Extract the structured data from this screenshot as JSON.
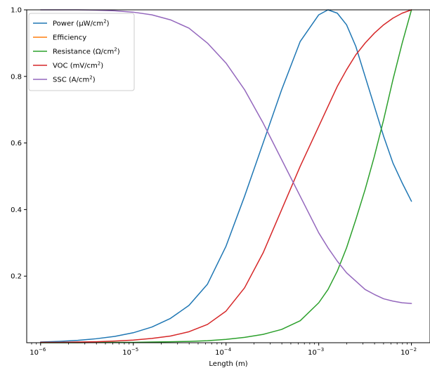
{
  "chart_data": {
    "type": "line",
    "title": "",
    "xlabel": "Length (m)",
    "ylabel": "",
    "xscale": "log",
    "xlim_exp": [
      -6.15,
      -1.8
    ],
    "ylim": [
      0.0,
      1.0
    ],
    "grid": false,
    "legend_position": "top-left",
    "x_ticks": [
      {
        "exp": -6,
        "base": "10",
        "sup": "−6"
      },
      {
        "exp": -5,
        "base": "10",
        "sup": "−5"
      },
      {
        "exp": -4,
        "base": "10",
        "sup": "−4"
      },
      {
        "exp": -3,
        "base": "10",
        "sup": "−3"
      },
      {
        "exp": -2,
        "base": "10",
        "sup": "−2"
      }
    ],
    "y_ticks": [
      {
        "v": 0.2,
        "label": "0.2"
      },
      {
        "v": 0.4,
        "label": "0.4"
      },
      {
        "v": 0.6,
        "label": "0.6"
      },
      {
        "v": 0.8,
        "label": "0.8"
      },
      {
        "v": 1.0,
        "label": "1.0"
      }
    ],
    "x": [
      1e-06,
      1.585e-06,
      2.512e-06,
      3.981e-06,
      6.31e-06,
      1e-05,
      1.585e-05,
      2.512e-05,
      3.981e-05,
      6.31e-05,
      0.0001,
      0.0001585,
      0.0002512,
      0.0003981,
      0.000631,
      0.001,
      0.001259,
      0.001585,
      0.001995,
      0.002512,
      0.003162,
      0.003981,
      0.005012,
      0.00631,
      0.007943,
      0.01
    ],
    "series": [
      {
        "name": "Power (μW/cm²)",
        "name_base": "Power (μW/cm",
        "name_sup": "2",
        "name_tail": ")",
        "color": "#1f77b4",
        "values": [
          0.002,
          0.004,
          0.007,
          0.012,
          0.019,
          0.03,
          0.047,
          0.073,
          0.112,
          0.176,
          0.29,
          0.44,
          0.6,
          0.76,
          0.905,
          0.985,
          1.0,
          0.99,
          0.955,
          0.89,
          0.8,
          0.71,
          0.62,
          0.54,
          0.48,
          0.425
        ]
      },
      {
        "name": "Efficiency",
        "name_base": "Efficiency",
        "name_sup": "",
        "name_tail": "",
        "color": "#ff7f0e",
        "values": [
          null,
          null,
          null,
          null,
          null,
          null,
          null,
          null,
          null,
          null,
          null,
          null,
          null,
          null,
          null,
          null,
          null,
          null,
          null,
          null,
          null,
          null,
          null,
          null,
          null,
          null
        ]
      },
      {
        "name": "Resistance (Ω/cm²)",
        "name_base": "Resistance (Ω/cm",
        "name_sup": "2",
        "name_tail": ")",
        "color": "#2ca02c",
        "values": [
          0.0,
          0.0,
          0.0,
          0.001,
          0.001,
          0.001,
          0.002,
          0.003,
          0.004,
          0.006,
          0.01,
          0.016,
          0.025,
          0.04,
          0.066,
          0.12,
          0.16,
          0.215,
          0.285,
          0.37,
          0.46,
          0.56,
          0.67,
          0.79,
          0.9,
          1.0
        ]
      },
      {
        "name": "VOC (mV/cm²)",
        "name_base": "VOC (mV/cm",
        "name_sup": "2",
        "name_tail": ")",
        "color": "#d62728",
        "values": [
          0.001,
          0.001,
          0.002,
          0.003,
          0.005,
          0.008,
          0.013,
          0.02,
          0.033,
          0.055,
          0.095,
          0.165,
          0.27,
          0.4,
          0.53,
          0.65,
          0.71,
          0.77,
          0.82,
          0.865,
          0.9,
          0.93,
          0.955,
          0.975,
          0.99,
          1.0
        ]
      },
      {
        "name": "SSC (A/cm²)",
        "name_base": "SSC (A/cm",
        "name_sup": "2",
        "name_tail": ")",
        "color": "#9467bd",
        "values": [
          1.0,
          1.0,
          1.0,
          0.999,
          0.997,
          0.993,
          0.985,
          0.97,
          0.945,
          0.9,
          0.84,
          0.76,
          0.66,
          0.55,
          0.44,
          0.33,
          0.285,
          0.245,
          0.21,
          0.185,
          0.16,
          0.145,
          0.132,
          0.125,
          0.12,
          0.118
        ]
      }
    ]
  }
}
